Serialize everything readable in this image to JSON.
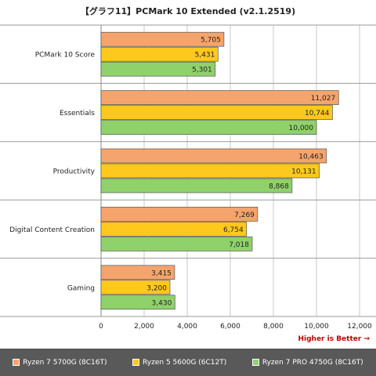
{
  "chart_data": {
    "type": "bar",
    "orientation": "horizontal",
    "title": "【グラフ11】PCMark 10 Extended (v2.1.2519)",
    "categories": [
      "PCMark 10 Score",
      "Essentials",
      "Productivity",
      "Digital Content Creation",
      "Gaming"
    ],
    "series": [
      {
        "name": "Ryzen 7 5700G (8C16T)",
        "color": "#f4a46c",
        "values": [
          5705,
          11027,
          10463,
          7269,
          3415
        ]
      },
      {
        "name": "Ryzen 5 5600G (6C12T)",
        "color": "#ffc81e",
        "values": [
          5431,
          10744,
          10131,
          6754,
          3200
        ]
      },
      {
        "name": "Ryzen 7 PRO 4750G (8C16T)",
        "color": "#8fd16b",
        "values": [
          5301,
          10000,
          8868,
          7018,
          3430
        ]
      }
    ],
    "value_labels": [
      [
        "5,705",
        "11,027",
        "10,463",
        "7,269",
        "3,415"
      ],
      [
        "5,431",
        "10,744",
        "10,131",
        "6,754",
        "3,200"
      ],
      [
        "5,301",
        "10,000",
        "8,868",
        "7,018",
        "3,430"
      ]
    ],
    "xlim": [
      0,
      12000
    ],
    "xticks": [
      0,
      2000,
      4000,
      6000,
      8000,
      10000,
      12000
    ],
    "xtick_labels": [
      "0",
      "2,000",
      "4,000",
      "6,000",
      "8,000",
      "10,000",
      "12,000"
    ],
    "grid": true,
    "legend_position": "bottom",
    "note": "Higher is Better →"
  }
}
